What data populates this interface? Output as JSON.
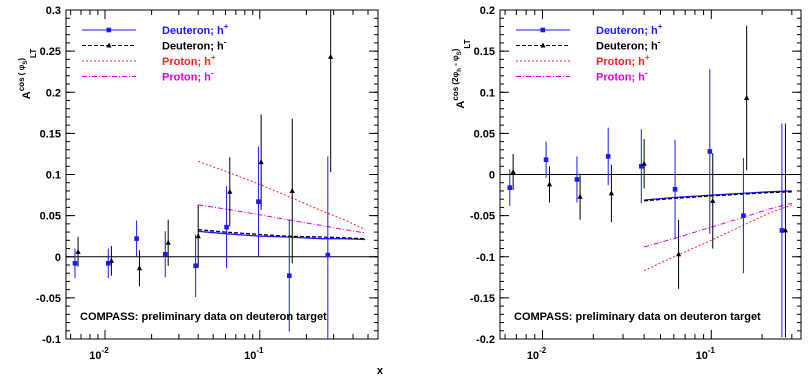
{
  "colors": {
    "deuteron_hplus": "#1a1aff",
    "deuteron_hminus": "#000000",
    "proton_hplus": "#ff2020",
    "proton_hminus": "#e000e0",
    "frame": "#000000"
  },
  "chart_data": [
    {
      "type": "scatter",
      "ylabel_main": "A",
      "ylabel_sup": "cos (  φ",
      "ylabel_sup_sub": "S",
      "ylabel_sup_end": ")",
      "ylabel_sub": "LT",
      "xlabel": "x",
      "x_scale": "log",
      "xlim": [
        0.0056,
        0.58
      ],
      "ylim": [
        -0.1,
        0.3
      ],
      "grid": false,
      "legend_placement": "top-left",
      "yticks": [
        {
          "value": -0.1,
          "label": "-0.1"
        },
        {
          "value": -0.05,
          "label": "-0.05"
        },
        {
          "value": 0,
          "label": "0"
        },
        {
          "value": 0.05,
          "label": "0.05"
        },
        {
          "value": 0.1,
          "label": "0.1"
        },
        {
          "value": 0.15,
          "label": "0.15"
        },
        {
          "value": 0.2,
          "label": "0.2"
        },
        {
          "value": 0.25,
          "label": "0.25"
        },
        {
          "value": 0.3,
          "label": "0.3"
        }
      ],
      "xticks": [
        {
          "value": 0.01,
          "base": "10",
          "exp": "-2"
        },
        {
          "value": 0.1,
          "base": "10",
          "exp": "-1"
        }
      ],
      "legend": [
        {
          "key": "deuteron_hplus",
          "label": "Deuteron; h",
          "sup": "+",
          "style": "solid-square"
        },
        {
          "key": "deuteron_hminus",
          "label": "Deuteron; h",
          "sup": "-",
          "style": "dashed-triangle"
        },
        {
          "key": "proton_hplus",
          "label": "Proton; h",
          "sup": "+",
          "style": "dotted"
        },
        {
          "key": "proton_hminus",
          "label": "Proton; h",
          "sup": "-",
          "style": "dashdot"
        }
      ],
      "annotation": "COMPASS: preliminary data on deuteron target",
      "series": [
        {
          "key": "deuteron_hplus",
          "marker": "square",
          "points": [
            {
              "x": 0.0064,
              "y": -0.008,
              "err": 0.018
            },
            {
              "x": 0.0105,
              "y": -0.008,
              "err": 0.018
            },
            {
              "x": 0.016,
              "y": 0.022,
              "err": 0.022
            },
            {
              "x": 0.0245,
              "y": 0.003,
              "err": 0.028
            },
            {
              "x": 0.0385,
              "y": -0.011,
              "err": 0.038
            },
            {
              "x": 0.061,
              "y": 0.036,
              "err": 0.05
            },
            {
              "x": 0.098,
              "y": 0.067,
              "err": 0.067
            },
            {
              "x": 0.155,
              "y": -0.023,
              "err": 0.068
            },
            {
              "x": 0.275,
              "y": 0.002,
              "err": 0.12
            }
          ]
        },
        {
          "key": "deuteron_hminus",
          "marker": "triangle",
          "points": [
            {
              "x": 0.0067,
              "y": 0.006,
              "err": 0.018
            },
            {
              "x": 0.011,
              "y": -0.005,
              "err": 0.018
            },
            {
              "x": 0.0167,
              "y": -0.014,
              "err": 0.022
            },
            {
              "x": 0.0256,
              "y": 0.017,
              "err": 0.028
            },
            {
              "x": 0.04,
              "y": 0.025,
              "err": 0.038
            },
            {
              "x": 0.064,
              "y": 0.079,
              "err": 0.042
            },
            {
              "x": 0.102,
              "y": 0.115,
              "err": 0.058
            },
            {
              "x": 0.162,
              "y": 0.08,
              "err": 0.088
            },
            {
              "x": 0.287,
              "y": 0.243,
              "err": 0.14
            }
          ]
        }
      ],
      "curves": [
        {
          "key": "deuteron_hplus",
          "x": [
            0.04,
            0.06,
            0.1,
            0.15,
            0.25,
            0.35,
            0.48
          ],
          "y": [
            0.031,
            0.028,
            0.025,
            0.024,
            0.022,
            0.022,
            0.021
          ]
        },
        {
          "key": "deuteron_hminus",
          "x": [
            0.04,
            0.06,
            0.1,
            0.15,
            0.25,
            0.35,
            0.48
          ],
          "y": [
            0.033,
            0.03,
            0.027,
            0.025,
            0.024,
            0.023,
            0.022
          ]
        },
        {
          "key": "proton_hplus",
          "x": [
            0.04,
            0.06,
            0.1,
            0.15,
            0.25,
            0.35,
            0.48
          ],
          "y": [
            0.116,
            0.104,
            0.088,
            0.074,
            0.056,
            0.045,
            0.033
          ]
        },
        {
          "key": "proton_hminus",
          "x": [
            0.04,
            0.06,
            0.1,
            0.15,
            0.25,
            0.35,
            0.48
          ],
          "y": [
            0.063,
            0.058,
            0.051,
            0.045,
            0.038,
            0.033,
            0.029
          ]
        }
      ]
    },
    {
      "type": "scatter",
      "ylabel_main": "A",
      "ylabel_sup": "cos (2φ",
      "ylabel_sup_sub": "h",
      "ylabel_sup_end": " - φ",
      "ylabel_sup_sub2": "S",
      "ylabel_sup_end2": ")",
      "ylabel_sub": "LT",
      "xlabel": "",
      "x_scale": "log",
      "xlim": [
        0.0056,
        0.34
      ],
      "ylim": [
        -0.2,
        0.2
      ],
      "grid": false,
      "legend_placement": "top-left",
      "yticks": [
        {
          "value": -0.2,
          "label": "-0.2"
        },
        {
          "value": -0.15,
          "label": "-0.15"
        },
        {
          "value": -0.1,
          "label": "-0.1"
        },
        {
          "value": -0.05,
          "label": "-0.05"
        },
        {
          "value": 0,
          "label": "0"
        },
        {
          "value": 0.05,
          "label": "0.05"
        },
        {
          "value": 0.1,
          "label": "0.1"
        },
        {
          "value": 0.15,
          "label": "0.15"
        },
        {
          "value": 0.2,
          "label": "0.2"
        }
      ],
      "xticks": [
        {
          "value": 0.01,
          "base": "10",
          "exp": "-2"
        },
        {
          "value": 0.1,
          "base": "10",
          "exp": "-1"
        }
      ],
      "legend": [
        {
          "key": "deuteron_hplus",
          "label": "Deuteron; h",
          "sup": "+",
          "style": "solid-square"
        },
        {
          "key": "deuteron_hminus",
          "label": "Deuteron; h",
          "sup": "-",
          "style": "dashed-triangle"
        },
        {
          "key": "proton_hplus",
          "label": "Proton; h",
          "sup": "+",
          "style": "dotted"
        },
        {
          "key": "proton_hminus",
          "label": "Proton; h",
          "sup": "-",
          "style": "dashdot"
        }
      ],
      "annotation": "COMPASS: preliminary data on deuteron target",
      "series": [
        {
          "key": "deuteron_hplus",
          "marker": "square",
          "points": [
            {
              "x": 0.0064,
              "y": -0.016,
              "err": 0.022
            },
            {
              "x": 0.0105,
              "y": 0.018,
              "err": 0.022
            },
            {
              "x": 0.016,
              "y": -0.006,
              "err": 0.028
            },
            {
              "x": 0.0245,
              "y": 0.022,
              "err": 0.035
            },
            {
              "x": 0.0385,
              "y": 0.01,
              "err": 0.045
            },
            {
              "x": 0.061,
              "y": -0.018,
              "err": 0.06
            },
            {
              "x": 0.098,
              "y": 0.028,
              "err": 0.1
            },
            {
              "x": 0.155,
              "y": -0.05,
              "err": 0.07
            },
            {
              "x": 0.262,
              "y": -0.068,
              "err": 0.13
            }
          ]
        },
        {
          "key": "deuteron_hminus",
          "marker": "triangle",
          "points": [
            {
              "x": 0.0067,
              "y": 0.003,
              "err": 0.022
            },
            {
              "x": 0.011,
              "y": -0.012,
              "err": 0.022
            },
            {
              "x": 0.0167,
              "y": -0.027,
              "err": 0.028
            },
            {
              "x": 0.0256,
              "y": -0.023,
              "err": 0.035
            },
            {
              "x": 0.04,
              "y": 0.013,
              "err": 0.03
            },
            {
              "x": 0.064,
              "y": -0.097,
              "err": 0.042
            },
            {
              "x": 0.102,
              "y": -0.032,
              "err": 0.058
            },
            {
              "x": 0.162,
              "y": 0.093,
              "err": 0.088
            },
            {
              "x": 0.275,
              "y": -0.068,
              "err": 0.13
            }
          ]
        }
      ],
      "curves": [
        {
          "key": "deuteron_hplus",
          "x": [
            0.04,
            0.06,
            0.1,
            0.15,
            0.22,
            0.3
          ],
          "y": [
            -0.031,
            -0.028,
            -0.025,
            -0.023,
            -0.021,
            -0.02
          ]
        },
        {
          "key": "deuteron_hminus",
          "x": [
            0.04,
            0.06,
            0.1,
            0.15,
            0.22,
            0.3
          ],
          "y": [
            -0.032,
            -0.029,
            -0.026,
            -0.024,
            -0.022,
            -0.021
          ]
        },
        {
          "key": "proton_hplus",
          "x": [
            0.04,
            0.06,
            0.1,
            0.15,
            0.22,
            0.3
          ],
          "y": [
            -0.117,
            -0.1,
            -0.08,
            -0.063,
            -0.047,
            -0.037
          ]
        },
        {
          "key": "proton_hminus",
          "x": [
            0.04,
            0.06,
            0.1,
            0.15,
            0.22,
            0.3
          ],
          "y": [
            -0.088,
            -0.078,
            -0.064,
            -0.053,
            -0.042,
            -0.035
          ]
        }
      ]
    }
  ]
}
